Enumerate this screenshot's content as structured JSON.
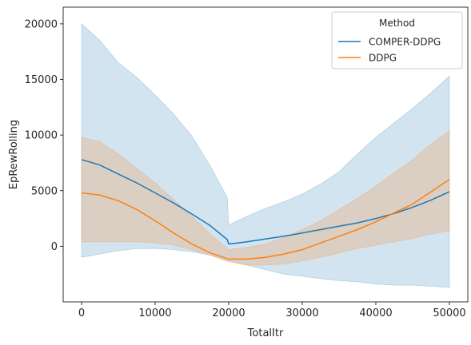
{
  "chart_data": {
    "type": "line",
    "title": "",
    "xlabel": "TotalItr",
    "ylabel": "EpRewRolling",
    "xlim": [
      -2500,
      52500
    ],
    "ylim": [
      -5000,
      21500
    ],
    "xticks": [
      0,
      10000,
      20000,
      30000,
      40000,
      50000
    ],
    "yticks": [
      0,
      5000,
      10000,
      15000,
      20000
    ],
    "grid": false,
    "legend": {
      "title": "Method",
      "placement": "top-right",
      "entries": [
        "COMPER-DDPG",
        "DDPG"
      ]
    },
    "series": [
      {
        "name": "COMPER-DDPG",
        "color": "#1f77b4",
        "x": [
          0,
          2500,
          5000,
          7500,
          10000,
          12500,
          15000,
          17500,
          19800,
          20000,
          22500,
          25000,
          27500,
          30000,
          32500,
          35000,
          37500,
          40000,
          42500,
          45000,
          47500,
          50000
        ],
        "mean": [
          7800,
          7300,
          6500,
          5700,
          4800,
          3900,
          2900,
          1850,
          600,
          200,
          400,
          650,
          900,
          1200,
          1500,
          1800,
          2100,
          2500,
          2950,
          3500,
          4150,
          4900
        ],
        "upper": [
          20000,
          18500,
          16500,
          15200,
          13600,
          11900,
          9900,
          7200,
          4400,
          1900,
          2700,
          3400,
          4000,
          4700,
          5600,
          6700,
          8300,
          9800,
          11100,
          12400,
          13800,
          15300
        ],
        "lower": [
          -1000,
          -700,
          -400,
          -200,
          -200,
          -300,
          -500,
          -800,
          -1300,
          -1300,
          -1700,
          -2100,
          -2500,
          -2700,
          -2900,
          -3100,
          -3200,
          -3400,
          -3500,
          -3500,
          -3600,
          -3700
        ]
      },
      {
        "name": "DDPG",
        "color": "#ff7f0e",
        "x": [
          0,
          2500,
          5000,
          7500,
          10000,
          12500,
          15000,
          17500,
          20000,
          22500,
          25000,
          27500,
          30000,
          32500,
          35000,
          37500,
          40000,
          42500,
          45000,
          47500,
          50000
        ],
        "mean": [
          4800,
          4600,
          4100,
          3300,
          2300,
          1200,
          200,
          -600,
          -1150,
          -1150,
          -1000,
          -700,
          -300,
          300,
          900,
          1500,
          2200,
          3000,
          3800,
          4900,
          6000
        ],
        "upper": [
          9800,
          9400,
          8300,
          7000,
          5700,
          4200,
          2700,
          1100,
          -300,
          -100,
          200,
          800,
          1500,
          2300,
          3300,
          4300,
          5400,
          6600,
          7800,
          9200,
          10400
        ],
        "lower": [
          400,
          400,
          400,
          400,
          300,
          100,
          -300,
          -800,
          -1400,
          -1700,
          -1700,
          -1600,
          -1300,
          -1000,
          -600,
          -200,
          100,
          400,
          700,
          1100,
          1400
        ]
      }
    ]
  }
}
